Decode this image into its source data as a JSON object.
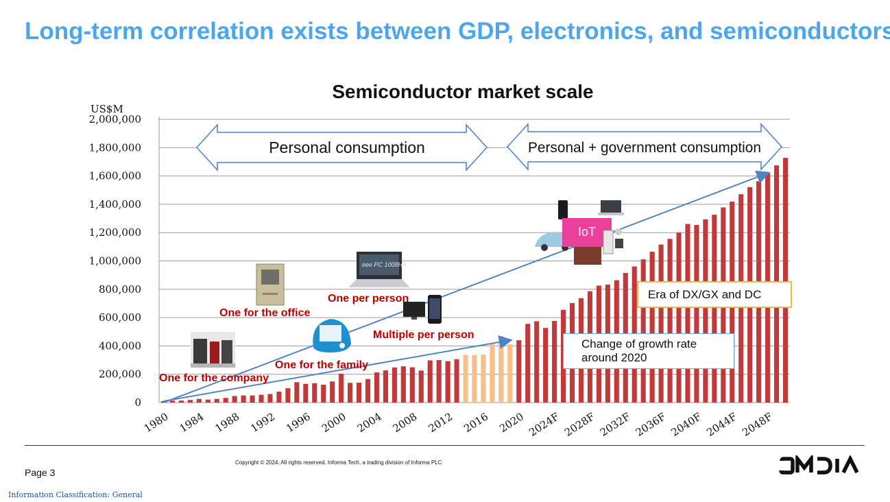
{
  "slide": {
    "title": "Long-term correlation exists between GDP, electronics, and semiconductors",
    "page": "Page 3",
    "copyright": "Copyright © 2024. All rights reserved. Informa Tech, a trading division of Informa PLC",
    "classification": "Information Classification: General",
    "logo_text": "OMDIA"
  },
  "colors": {
    "title": "#4da6ec",
    "bar": "#c0393b",
    "bar_highlight": "#f7c08a",
    "annotation_red": "#c00000",
    "arrow_outline": "#4a7fd0",
    "trend_line": "#4f83c6",
    "iot_badge": "#e8409b",
    "era_border": "#f2b84b"
  },
  "icons": [
    "server-room-icon",
    "desktop-computer-icon",
    "imac-computer-icon",
    "laptop-icon",
    "smartphone-icon",
    "television-icon",
    "car-icon",
    "home-appliances-icon",
    "office-icon"
  ],
  "chart_data": {
    "type": "bar",
    "title": "Semiconductor market scale",
    "unit_label": "US$M",
    "ylim": [
      0,
      2000000
    ],
    "yticks": [
      "0",
      "200,000",
      "400,000",
      "600,000",
      "800,000",
      "1,000,000",
      "1,200,000",
      "1,400,000",
      "1,600,000",
      "1,800,000",
      "2,000,000"
    ],
    "xtick_labels": [
      "1980",
      "1984",
      "1988",
      "1992",
      "1996",
      "2000",
      "2004",
      "2008",
      "2012",
      "2016",
      "2020",
      "2024F",
      "2028F",
      "2032F",
      "2036F",
      "2040F",
      "2044F",
      "2048F"
    ],
    "grid": true,
    "categories": [
      "1980",
      "1981",
      "1982",
      "1983",
      "1984",
      "1985",
      "1986",
      "1987",
      "1988",
      "1989",
      "1990",
      "1991",
      "1992",
      "1993",
      "1994",
      "1995",
      "1996",
      "1997",
      "1998",
      "1999",
      "2000",
      "2001",
      "2002",
      "2003",
      "2004",
      "2005",
      "2006",
      "2007",
      "2008",
      "2009",
      "2010",
      "2011",
      "2012",
      "2013",
      "2014",
      "2015",
      "2016",
      "2017",
      "2018",
      "2019",
      "2020",
      "2021",
      "2022",
      "2023",
      "2024F",
      "2025F",
      "2026F",
      "2027F",
      "2028F",
      "2029F",
      "2030F",
      "2031F",
      "2032F",
      "2033F",
      "2034F",
      "2035F",
      "2036F",
      "2037F",
      "2038F",
      "2039F",
      "2040F",
      "2041F",
      "2042F",
      "2043F",
      "2044F",
      "2045F",
      "2046F",
      "2047F",
      "2048F",
      "2049F",
      "2050F"
    ],
    "values": [
      10000,
      14000,
      14000,
      18000,
      26000,
      21000,
      26000,
      33000,
      46000,
      50000,
      50000,
      55000,
      60000,
      77000,
      101000,
      144000,
      132000,
      137000,
      126000,
      149000,
      204000,
      139000,
      140000,
      166000,
      213000,
      227000,
      248000,
      256000,
      249000,
      226000,
      298000,
      300000,
      292000,
      306000,
      336000,
      335000,
      339000,
      412000,
      469000,
      412000,
      440000,
      556000,
      574000,
      527000,
      576000,
      655000,
      702000,
      737000,
      786000,
      826000,
      833000,
      864000,
      915000,
      961000,
      1011000,
      1065000,
      1116000,
      1156000,
      1200000,
      1261000,
      1254000,
      1294000,
      1326000,
      1378000,
      1419000,
      1471000,
      1521000,
      1563000,
      1620000,
      1675000,
      1728000
    ],
    "highlight_categories": [
      "2014",
      "2015",
      "2016",
      "2017",
      "2018",
      "2019"
    ],
    "phases": [
      {
        "label": "Personal consumption"
      },
      {
        "label": "Personal + government consumption"
      }
    ],
    "trend_line": {
      "from": [
        "1980",
        0
      ],
      "to": [
        "2048F",
        1620000
      ]
    },
    "trend_line_2": {
      "from": [
        "1980",
        10000
      ],
      "to": [
        "2019",
        440000
      ]
    },
    "annotations": [
      {
        "text": "One for the company"
      },
      {
        "text": "One for the office"
      },
      {
        "text": "One for the family"
      },
      {
        "text": "One per person"
      },
      {
        "text": "Multiple per person"
      },
      {
        "text": "IoT"
      },
      {
        "text": "Era of DX/GX and DC"
      },
      {
        "text": "Change of growth rate around 2020"
      }
    ]
  }
}
